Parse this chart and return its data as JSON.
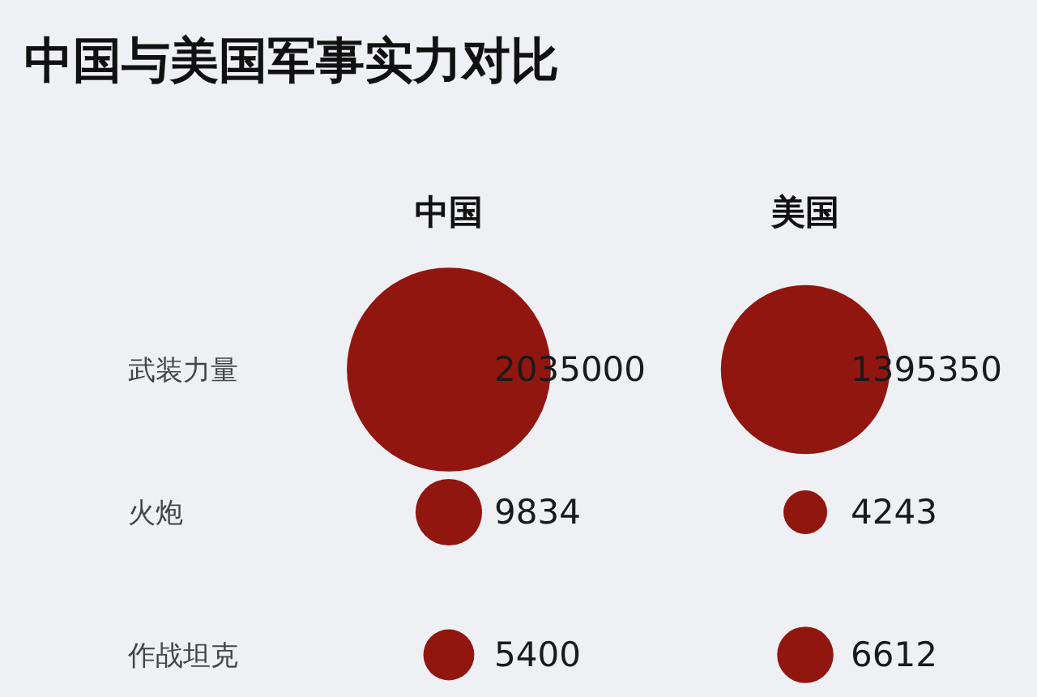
{
  "chart_data": {
    "type": "other",
    "title": "中国与美国军事实力对比",
    "categories": [
      "武装力量",
      "火炮",
      "作战坦克"
    ],
    "series": [
      {
        "name": "中国",
        "values": [
          2035000,
          9834,
          5400
        ]
      },
      {
        "name": "美国",
        "values": [
          1395350,
          4243,
          6612
        ]
      }
    ],
    "data_labels": true
  }
}
